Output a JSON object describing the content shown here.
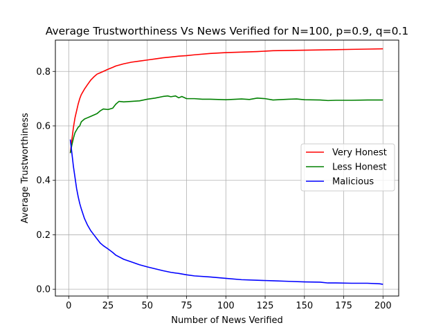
{
  "chart_data": {
    "type": "line",
    "title": "Average Trustworthiness Vs News Verified for N=100, p=0.9, q=0.1",
    "xlabel": "Number of News Verified",
    "ylabel": "Average Trustworthiness",
    "xlim": [
      -8.5,
      210
    ],
    "ylim": [
      -0.025,
      0.915
    ],
    "xticks": [
      0,
      25,
      50,
      75,
      100,
      125,
      150,
      175,
      200
    ],
    "yticks": [
      0.0,
      0.2,
      0.4,
      0.6,
      0.8
    ],
    "ytick_labels": [
      "0.0",
      "0.2",
      "0.4",
      "0.6",
      "0.8"
    ],
    "grid": true,
    "legend_position": "center-right",
    "series": [
      {
        "name": "Very Honest",
        "color": "#ff0000",
        "x": [
          1,
          2,
          3,
          4,
          5,
          6,
          7,
          8,
          9,
          10,
          12,
          14,
          16,
          18,
          20,
          22,
          25,
          28,
          30,
          35,
          40,
          45,
          50,
          55,
          60,
          65,
          70,
          75,
          80,
          90,
          100,
          110,
          120,
          130,
          140,
          150,
          160,
          170,
          180,
          190,
          200
        ],
        "y": [
          0.5,
          0.55,
          0.595,
          0.63,
          0.655,
          0.68,
          0.7,
          0.715,
          0.725,
          0.735,
          0.752,
          0.768,
          0.78,
          0.79,
          0.795,
          0.8,
          0.808,
          0.815,
          0.82,
          0.828,
          0.834,
          0.838,
          0.842,
          0.846,
          0.85,
          0.853,
          0.856,
          0.858,
          0.861,
          0.866,
          0.869,
          0.871,
          0.873,
          0.876,
          0.877,
          0.878,
          0.879,
          0.88,
          0.881,
          0.882,
          0.883
        ]
      },
      {
        "name": "Less Honest",
        "color": "#008000",
        "x": [
          1,
          2,
          3,
          4,
          5,
          6,
          7,
          8,
          10,
          12,
          14,
          16,
          18,
          20,
          22,
          25,
          28,
          30,
          32,
          35,
          40,
          45,
          50,
          55,
          60,
          63,
          65,
          68,
          70,
          72,
          75,
          80,
          85,
          90,
          100,
          110,
          115,
          120,
          125,
          130,
          140,
          145,
          150,
          160,
          165,
          170,
          180,
          190,
          200
        ],
        "y": [
          0.5,
          0.53,
          0.555,
          0.575,
          0.585,
          0.595,
          0.6,
          0.615,
          0.625,
          0.63,
          0.635,
          0.64,
          0.645,
          0.655,
          0.662,
          0.66,
          0.665,
          0.68,
          0.69,
          0.688,
          0.69,
          0.692,
          0.698,
          0.702,
          0.708,
          0.71,
          0.707,
          0.71,
          0.703,
          0.708,
          0.7,
          0.7,
          0.698,
          0.698,
          0.696,
          0.699,
          0.697,
          0.702,
          0.7,
          0.695,
          0.698,
          0.699,
          0.696,
          0.695,
          0.693,
          0.694,
          0.694,
          0.695,
          0.695
        ]
      },
      {
        "name": "Malicious",
        "color": "#0000ff",
        "x": [
          1,
          2,
          3,
          4,
          5,
          6,
          7,
          8,
          10,
          12,
          14,
          16,
          18,
          20,
          22,
          25,
          28,
          30,
          35,
          40,
          45,
          50,
          55,
          60,
          65,
          70,
          75,
          80,
          90,
          100,
          110,
          120,
          130,
          140,
          150,
          160,
          165,
          170,
          180,
          190,
          198,
          200
        ],
        "y": [
          0.55,
          0.5,
          0.45,
          0.41,
          0.37,
          0.34,
          0.315,
          0.295,
          0.26,
          0.235,
          0.215,
          0.2,
          0.185,
          0.17,
          0.16,
          0.148,
          0.135,
          0.125,
          0.11,
          0.1,
          0.09,
          0.082,
          0.075,
          0.068,
          0.062,
          0.058,
          0.053,
          0.049,
          0.045,
          0.04,
          0.035,
          0.033,
          0.031,
          0.029,
          0.027,
          0.026,
          0.023,
          0.023,
          0.022,
          0.022,
          0.02,
          0.018
        ]
      }
    ]
  }
}
